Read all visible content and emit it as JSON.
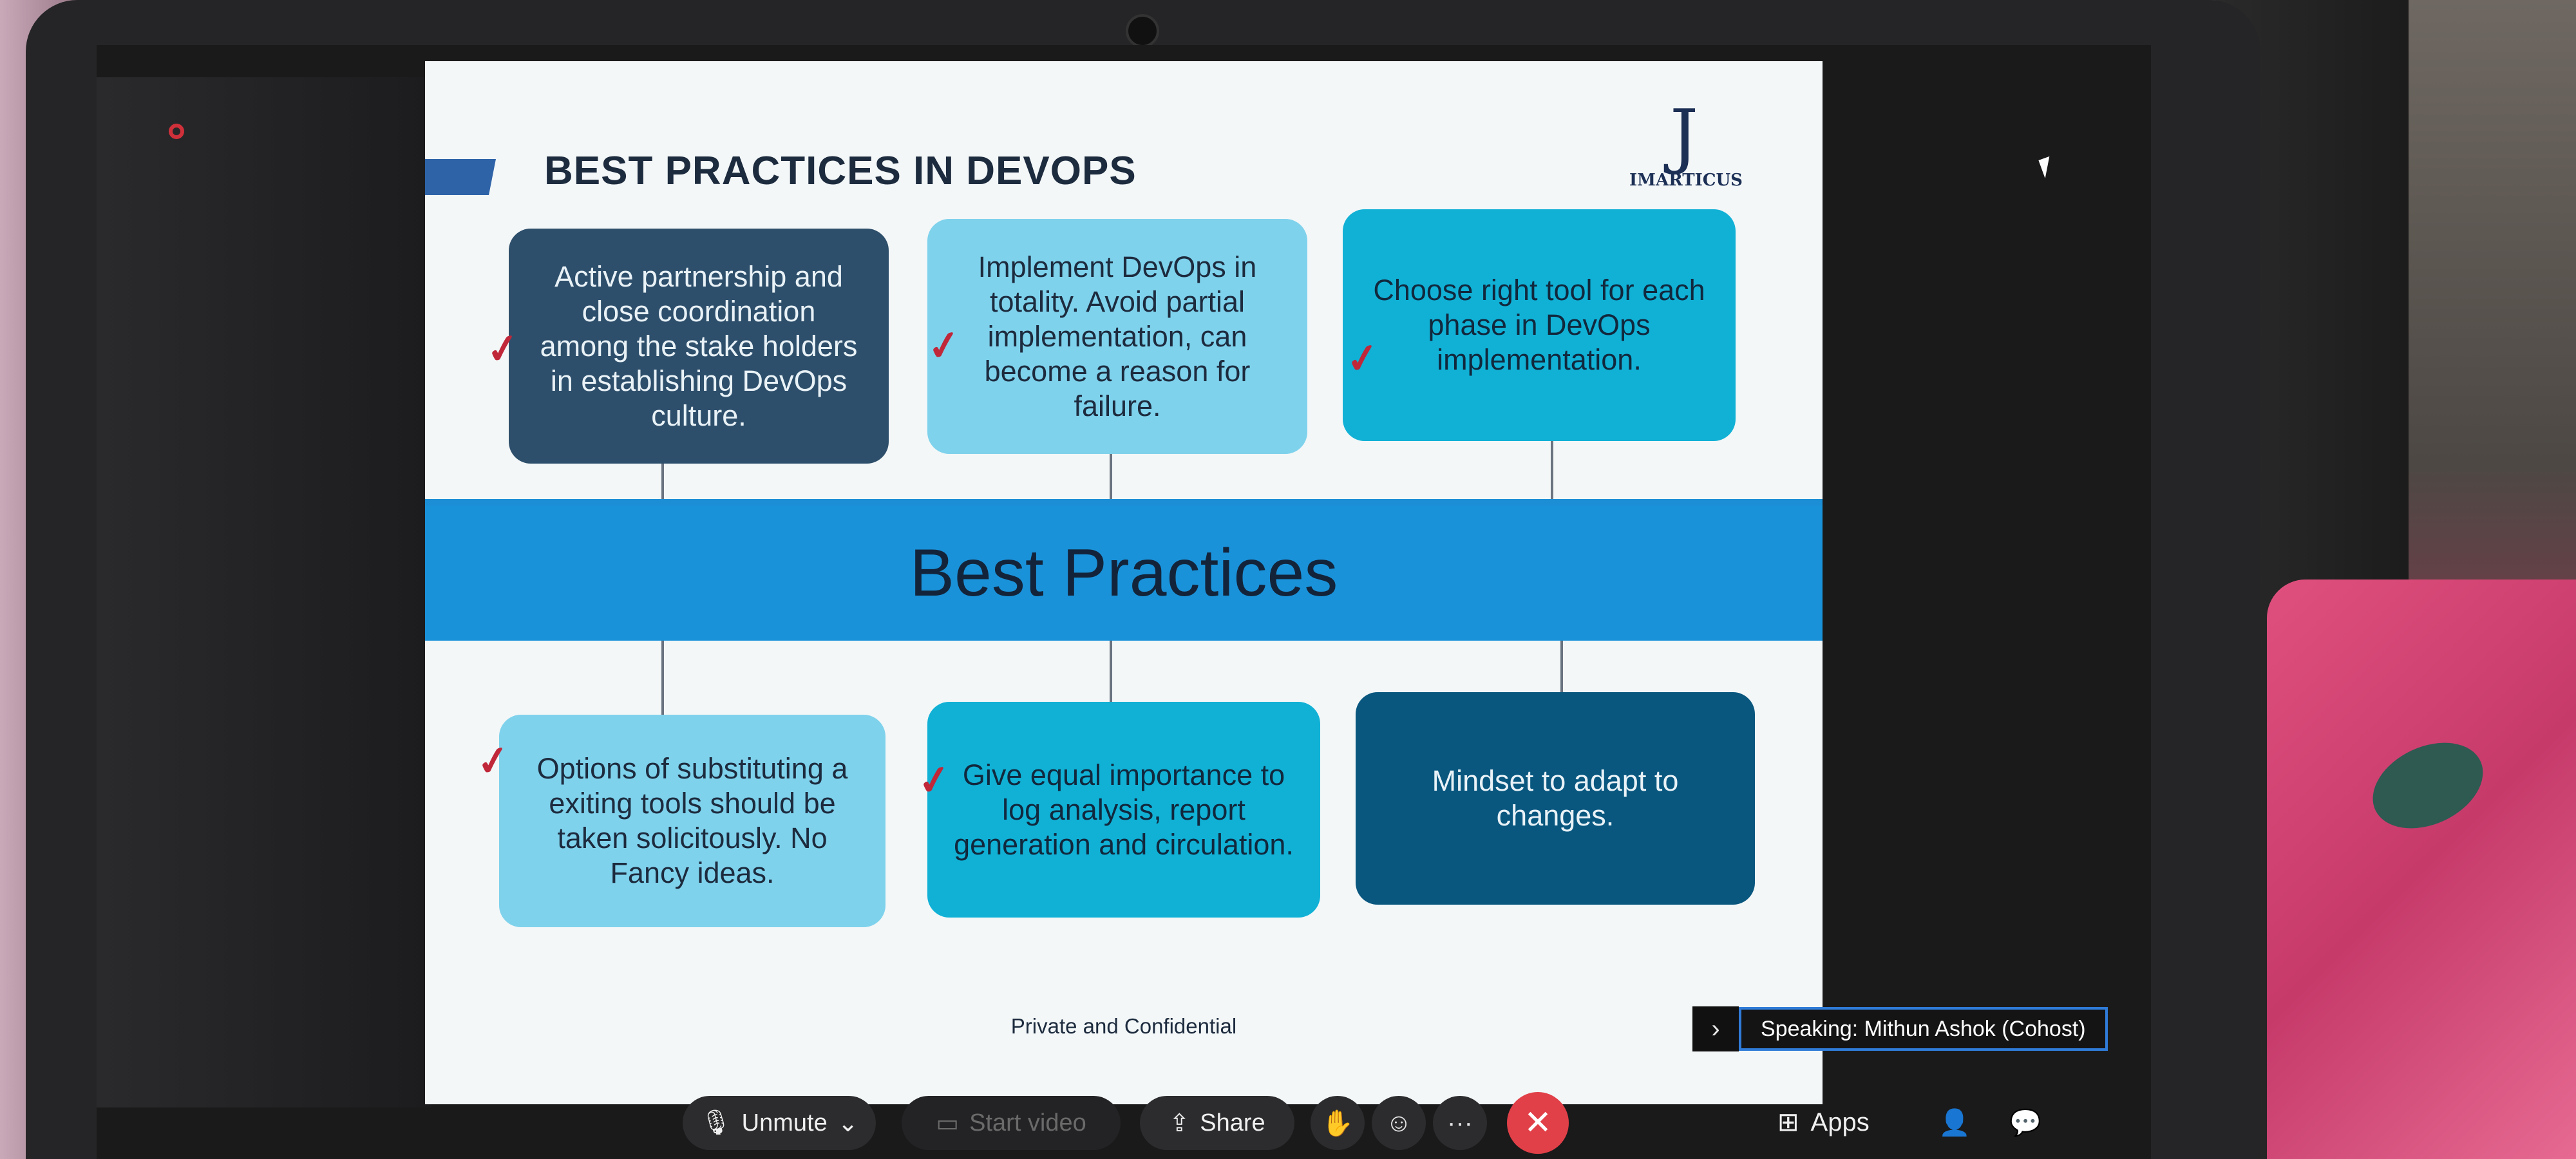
{
  "slide": {
    "title": "BEST PRACTICES IN DEVOPS",
    "logo_text": "IMARTICUS",
    "center_label": "Best Practices",
    "top_boxes": [
      "Active partnership and close coordination among the stake holders in establishing DevOps culture.",
      "Implement DevOps in totality. Avoid partial implementation, can become a reason for failure.",
      "Choose right tool for each phase in DevOps implementation."
    ],
    "bottom_boxes": [
      "Options of substituting a exiting tools should be taken solicitously. No Fancy ideas.",
      "Give equal importance to log analysis, report generation and circulation.",
      "Mindset to adapt to changes."
    ],
    "footer": "Private and Confidential",
    "colors": {
      "dark": "#2e4f6b",
      "light": "#7fd2ec",
      "mid": "#11b1d6",
      "navy": "#09577f",
      "band": "#1a92da"
    }
  },
  "meeting": {
    "speaking": "Speaking: Mithun Ashok (Cohost)",
    "toolbar": {
      "unmute": "Unmute",
      "start_video": "Start video",
      "share": "Share",
      "apps": "Apps",
      "more": "···"
    }
  },
  "icons": [
    "mic-muted-icon",
    "video-off-icon",
    "share-icon",
    "raise-hand-icon",
    "reactions-icon",
    "more-icon",
    "end-call-icon",
    "apps-icon",
    "participants-icon",
    "chat-icon"
  ]
}
